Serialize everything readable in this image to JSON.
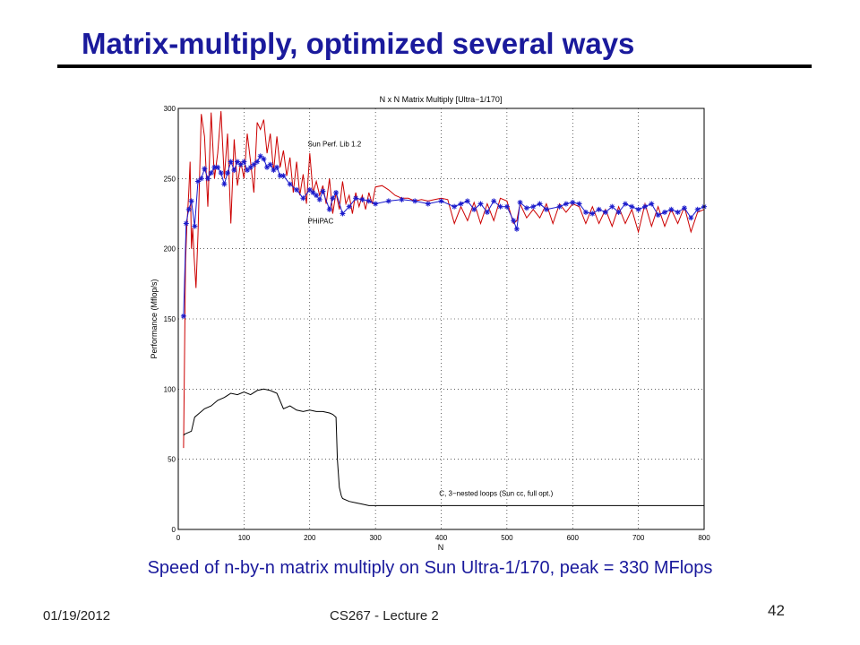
{
  "slide": {
    "title": "Matrix-multiply, optimized several ways",
    "caption": "Speed of n-by-n matrix multiply on Sun Ultra-1/170, peak = 330 MFlops",
    "footer_date": "01/19/2012",
    "footer_course": "CS267 - Lecture 2",
    "page_number": "42"
  },
  "colors": {
    "title": "#1a1a9c",
    "sun_perf_lib": "#cc0000",
    "phipac": "#1a1acc",
    "c_naive": "#000000"
  },
  "chart_data": {
    "type": "line",
    "title": "N x N Matrix Multiply [Ultra−1/170]",
    "xlabel": "N",
    "ylabel": "Performance (Mflop/s)",
    "xlim": [
      0,
      800
    ],
    "ylim": [
      0,
      300
    ],
    "grid": true,
    "x_ticks": [
      "0",
      "100",
      "200",
      "300",
      "400",
      "500",
      "600",
      "700",
      "800"
    ],
    "y_ticks": [
      "0",
      "50",
      "100",
      "150",
      "200",
      "250",
      "300"
    ],
    "annotations": [
      {
        "text": "Sun Perf. Lib 1.2",
        "x": 197,
        "y": 273
      },
      {
        "text": "PHiPAC",
        "x": 197,
        "y": 218
      },
      {
        "text": "C, 3−nested loops (Sun cc, full opt.)",
        "x": 397,
        "y": 24
      }
    ],
    "series": [
      {
        "name": "Sun Perf. Lib 1.2",
        "marker": "none",
        "x": [
          8,
          11,
          13,
          16,
          18,
          20,
          22,
          24,
          27,
          30,
          35,
          40,
          45,
          50,
          55,
          60,
          65,
          70,
          75,
          80,
          85,
          90,
          95,
          100,
          105,
          110,
          115,
          120,
          125,
          130,
          135,
          140,
          145,
          150,
          155,
          160,
          165,
          170,
          175,
          180,
          185,
          190,
          195,
          200,
          205,
          210,
          215,
          220,
          225,
          230,
          235,
          240,
          245,
          250,
          255,
          260,
          265,
          270,
          275,
          280,
          285,
          290,
          295,
          300,
          310,
          320,
          330,
          340,
          350,
          360,
          370,
          380,
          390,
          400,
          410,
          420,
          430,
          440,
          450,
          460,
          470,
          480,
          490,
          500,
          510,
          515,
          520,
          530,
          540,
          550,
          560,
          570,
          580,
          590,
          600,
          610,
          620,
          630,
          640,
          650,
          660,
          670,
          680,
          690,
          700,
          710,
          720,
          730,
          740,
          750,
          760,
          770,
          780,
          790,
          800
        ],
        "y": [
          58,
          190,
          215,
          240,
          262,
          200,
          215,
          195,
          172,
          210,
          296,
          280,
          230,
          297,
          250,
          268,
          298,
          250,
          282,
          218,
          278,
          245,
          262,
          250,
          282,
          262,
          240,
          290,
          285,
          292,
          268,
          282,
          255,
          280,
          258,
          270,
          252,
          265,
          240,
          262,
          238,
          253,
          232,
          268,
          240,
          248,
          238,
          245,
          232,
          250,
          225,
          240,
          228,
          248,
          232,
          238,
          225,
          240,
          230,
          238,
          228,
          240,
          232,
          244,
          245,
          242,
          238,
          236,
          236,
          234,
          235,
          234,
          235,
          236,
          235,
          218,
          230,
          220,
          233,
          218,
          232,
          220,
          236,
          234,
          218,
          220,
          232,
          222,
          228,
          222,
          232,
          218,
          232,
          226,
          232,
          230,
          218,
          230,
          218,
          228,
          216,
          230,
          218,
          228,
          212,
          232,
          216,
          230,
          216,
          228,
          218,
          230,
          212,
          226,
          228
        ]
      },
      {
        "name": "PHiPAC",
        "marker": "asterisk",
        "x": [
          8,
          12,
          16,
          20,
          25,
          30,
          35,
          40,
          45,
          50,
          55,
          60,
          65,
          70,
          75,
          80,
          85,
          90,
          95,
          100,
          105,
          110,
          115,
          120,
          125,
          130,
          135,
          140,
          145,
          150,
          155,
          160,
          170,
          180,
          190,
          200,
          205,
          210,
          215,
          220,
          230,
          235,
          240,
          250,
          260,
          270,
          280,
          290,
          300,
          320,
          340,
          360,
          380,
          400,
          420,
          430,
          440,
          450,
          460,
          470,
          480,
          490,
          500,
          510,
          515,
          520,
          530,
          540,
          550,
          560,
          580,
          590,
          600,
          610,
          620,
          630,
          640,
          650,
          660,
          670,
          680,
          690,
          700,
          710,
          720,
          730,
          740,
          750,
          760,
          770,
          780,
          790,
          800
        ],
        "y": [
          152,
          218,
          228,
          234,
          216,
          248,
          250,
          257,
          250,
          254,
          258,
          258,
          254,
          246,
          254,
          262,
          256,
          262,
          260,
          262,
          256,
          258,
          260,
          262,
          266,
          264,
          258,
          260,
          256,
          258,
          252,
          252,
          246,
          242,
          236,
          242,
          240,
          238,
          235,
          241,
          228,
          236,
          240,
          225,
          230,
          236,
          235,
          234,
          232,
          234,
          235,
          234,
          232,
          234,
          230,
          232,
          234,
          228,
          232,
          226,
          234,
          230,
          230,
          220,
          214,
          233,
          229,
          230,
          232,
          228,
          230,
          232,
          233,
          232,
          226,
          225,
          228,
          226,
          230,
          226,
          232,
          230,
          228,
          230,
          232,
          224,
          226,
          228,
          226,
          229,
          222,
          228,
          230
        ]
      },
      {
        "name": "C, 3−nested loops (Sun cc, full opt.)",
        "marker": "none",
        "x": [
          8,
          10,
          15,
          20,
          25,
          30,
          35,
          40,
          50,
          60,
          70,
          80,
          90,
          100,
          110,
          120,
          130,
          140,
          150,
          160,
          170,
          180,
          190,
          200,
          210,
          220,
          230,
          235,
          240,
          242,
          245,
          248,
          250,
          260,
          270,
          280,
          290,
          300,
          350,
          400,
          450,
          500,
          600,
          700,
          800
        ],
        "y": [
          67,
          68,
          69,
          70,
          80,
          82,
          84,
          86,
          88,
          92,
          94,
          97,
          96,
          98,
          96,
          99,
          100,
          99,
          97,
          86,
          88,
          85,
          84,
          85,
          84,
          84,
          83,
          82,
          80,
          50,
          30,
          24,
          22,
          20,
          19,
          18,
          17,
          17,
          17,
          17,
          17,
          17,
          17,
          17,
          17
        ]
      }
    ]
  }
}
